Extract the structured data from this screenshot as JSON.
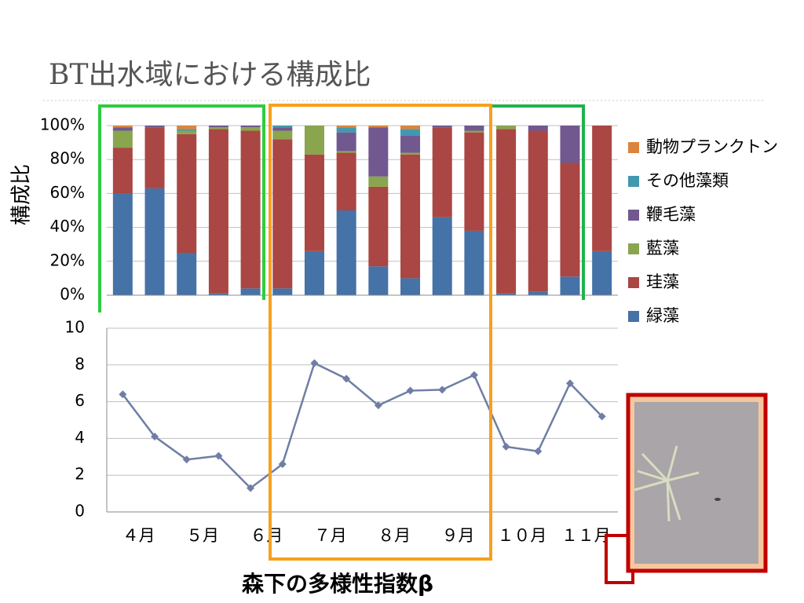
{
  "title": "BT出水域における構成比",
  "chart_data": [
    {
      "type": "bar",
      "stacked": true,
      "y_label": "構成比",
      "ylim": [
        0,
        100
      ],
      "yticks": [
        {
          "value": 0,
          "label": "0%"
        },
        {
          "value": 20,
          "label": "20%"
        },
        {
          "value": 40,
          "label": "40%"
        },
        {
          "value": 60,
          "label": "60%"
        },
        {
          "value": 80,
          "label": "80%"
        },
        {
          "value": 100,
          "label": "100%"
        }
      ],
      "grid": true,
      "legend": "right",
      "series": [
        {
          "name": "緑藻",
          "color": "#4572a7",
          "values": [
            60,
            63,
            25,
            1,
            4,
            4,
            26,
            50,
            17,
            10,
            46,
            38,
            1,
            2,
            11,
            26
          ]
        },
        {
          "name": "珪藻",
          "color": "#aa4643",
          "values": [
            27,
            36,
            70,
            97,
            93,
            88,
            57,
            34,
            47,
            73,
            53,
            58,
            97,
            95,
            67,
            74
          ]
        },
        {
          "name": "藍藻",
          "color": "#89a54e",
          "values": [
            10,
            0,
            2,
            1,
            2,
            5,
            17,
            1,
            6,
            1,
            0,
            1,
            2,
            0,
            0,
            0
          ]
        },
        {
          "name": "鞭毛藻",
          "color": "#71588f",
          "values": [
            2,
            1,
            0,
            1,
            1,
            2,
            0,
            11,
            29,
            10,
            1,
            3,
            0,
            3,
            22,
            0
          ]
        },
        {
          "name": "その他藻類",
          "color": "#4198af",
          "values": [
            0,
            0,
            1,
            0,
            0,
            1,
            0,
            3,
            0,
            4,
            0,
            0,
            0,
            0,
            0,
            0
          ]
        },
        {
          "name": "動物プランクトン",
          "color": "#db843d",
          "values": [
            1,
            0,
            2,
            0,
            0,
            0,
            0,
            1,
            1,
            2,
            0,
            0,
            0,
            0,
            0,
            0
          ]
        }
      ]
    },
    {
      "type": "line",
      "x_label": "森下の多様性指数β",
      "month_labels": [
        "４月",
        "５月",
        "６月",
        "７月",
        "８月",
        "９月",
        "１０月",
        "１１月"
      ],
      "ylim": [
        0,
        10
      ],
      "yticks": [
        0,
        2,
        4,
        6,
        8,
        10
      ],
      "grid": true,
      "color": "#6f7ea6",
      "values": [
        6.4,
        4.1,
        2.85,
        3.05,
        1.3,
        2.6,
        8.1,
        7.25,
        5.8,
        6.6,
        6.65,
        7.45,
        3.55,
        3.3,
        7.0,
        5.2
      ]
    }
  ]
}
